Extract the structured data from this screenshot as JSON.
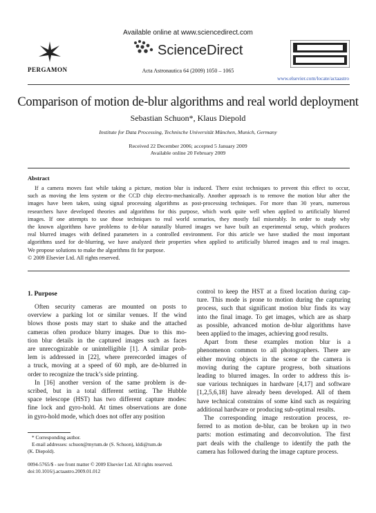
{
  "header": {
    "available_online": "Available online at www.sciencedirect.com",
    "brand": "ScienceDirect",
    "publisher": "PERGAMON",
    "journal_ref": "Acta Astronautica 64 (2009) 1050 – 1065",
    "url": "www.elsevier.com/locate/actaastro"
  },
  "article": {
    "title": "Comparison of motion de-blur algorithms and real world deployment",
    "authors": "Sebastian Schuon*, Klaus Diepold",
    "affiliation": "Institute for Data Processing, Technische Universität München, Munich, Germany",
    "received": "Received 22 December 2006; accepted 5 January 2009",
    "available": "Available online 20 February 2009"
  },
  "abstract": {
    "heading": "Abstract",
    "body": [
      "If a camera moves fast while taking a picture, motion blur is induced. There exist techniques to prevent this effect to occur,",
      "such as moving the lens system or the CCD chip electro-mechanically. Another approach is to remove the motion blur after the",
      "images have been taken, using signal processing algorithms as post-processing techniques. For more than 30 years, numerous",
      "researchers have developed theories and algorithms for this purpose, which work quite well when applied to artificially blurred",
      "images. If one attempts to use those techniques to real world scenarios, they mostly fail miserably. In order to study why",
      "the known algorithms have problems to de-blur naturally blurred images we have built an experimental setup, which produces",
      "real blurred images with defined parameters in a controlled environment. For this article we have studied the most important",
      "algorithms used for de-blurring, we have analyzed their properties when applied to artificially blurred images and to real images.",
      "We propose solutions to make the algorithms fit for purpose."
    ],
    "copyright": "© 2009 Elsevier Ltd. All rights reserved."
  },
  "section": {
    "heading": "1. Purpose",
    "left_column": [
      [
        "Often security cameras are mounted on posts to",
        "overview a parking lot or similar venues. If the wind",
        "blows those posts may start to shake and the attached",
        "cameras often produce blurry images. Due to this mo-",
        "tion blur details in the captured images such as faces",
        "are unrecognizable or unintelligible [1]. A similar prob-",
        "lem is addressed in [22], where prerecorded images of",
        "a truck, moving at a speed of 60 mph, are de-blurred in",
        "order to recognize the truck’s side printing."
      ],
      [
        "In [16] another version of the same problem is de-",
        "scribed, but in a total different setting. The Hubble",
        "space telescope (HST) has two different capture modes:",
        "fine lock and gyro-hold. At times observations are done",
        "in gyro-hold mode, which does not offer any position"
      ]
    ],
    "right_column": [
      [
        "control to keep the HST at a fixed location during cap-",
        "ture. This mode is prone to motion during the capturing",
        "process, such that significant motion blur finds its way",
        "into the final image. To get images, which are as sharp",
        "as possible, advanced motion de-blur algorithms have",
        "been applied to the images, achieving good results."
      ],
      [
        "Apart from these examples motion blur is a",
        "phenomenon common to all photographers. There are",
        "either moving objects in the scene or the camera is",
        "moving during the capture progress, both situations",
        "leading to blurred images. In order to address this is-",
        "sue various techniques in hardware [4,17] and software",
        "[1,2,5,6,18] have already been developed. All of them",
        "have technical constrains of some kind such as requiring",
        "additional hardware or producing sub-optimal results."
      ],
      [
        "The corresponding image restoration process, re-",
        "ferred to as motion de-blur, can be broken up in two",
        "parts: motion estimating and deconvolution. The first",
        "part deals with the challenge to identify the path the",
        "camera has followed during the image capture process."
      ]
    ]
  },
  "footnote": [
    "* Corresponding author.",
    "E-mail addresses: schuon@mytum.de (S. Schuon), kldi@tum.de",
    "(K. Diepold)."
  ],
  "footer": [
    "0094-5765/$ - see front matter © 2009 Elsevier Ltd. All rights reserved.",
    "doi:10.1016/j.actaastro.2009.01.012"
  ]
}
